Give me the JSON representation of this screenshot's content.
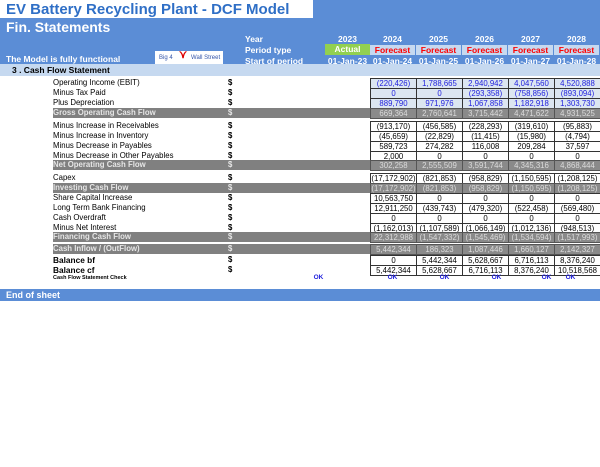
{
  "title": "EV Battery Recycling Plant - DCF Model",
  "subtitle": "Fin. Statements",
  "functional_note": "The Model is fully functional",
  "logo_text": [
    "Big 4",
    "Wall Street"
  ],
  "header": {
    "year_label": "Year",
    "period_label": "Period type",
    "start_label": "Start of period",
    "years": [
      "2023",
      "2024",
      "2025",
      "2026",
      "2027",
      "2028"
    ],
    "period_types": [
      "Actual",
      "Forecast",
      "Forecast",
      "Forecast",
      "Forecast",
      "Forecast"
    ],
    "starts": [
      "01-Jan-23",
      "01-Jan-24",
      "01-Jan-25",
      "01-Jan-26",
      "01-Jan-27",
      "01-Jan-28"
    ],
    "actual_color": "#92d050",
    "forecast_color": "#ff0000"
  },
  "section": "3 .  Cash Flow Statement",
  "currency": "$",
  "rows": [
    {
      "label": "Operating Income (EBIT)",
      "style": "blue",
      "values": [
        "(220,426)",
        "1,788,665",
        "2,940,942",
        "4,047,560",
        "4,520,888"
      ]
    },
    {
      "label": "Minus Tax Paid",
      "style": "blue",
      "values": [
        "0",
        "0",
        "(293,358)",
        "(758,856)",
        "(893,094)"
      ]
    },
    {
      "label": "Plus Depreciation",
      "style": "blue",
      "values": [
        "889,790",
        "971,976",
        "1,067,858",
        "1,182,918",
        "1,303,730"
      ]
    },
    {
      "label": "Gross Operating Cash Flow",
      "style": "total",
      "values": [
        "669,364",
        "2,760,641",
        "3,715,442",
        "4,471,622",
        "4,931,525"
      ]
    },
    {
      "label": "Minus Increase in Receivables",
      "style": "plain",
      "values": [
        "(913,170)",
        "(456,585)",
        "(228,293)",
        "(319,610)",
        "(95,883)"
      ]
    },
    {
      "label": "Minus Increase in Inventory",
      "style": "plain",
      "values": [
        "(45,659)",
        "(22,829)",
        "(11,415)",
        "(15,980)",
        "(4,794)"
      ]
    },
    {
      "label": "Minus Decrease in Payables",
      "style": "plain",
      "values": [
        "589,723",
        "274,282",
        "116,008",
        "209,284",
        "37,597"
      ]
    },
    {
      "label": "Minus Decrease in Other Payables",
      "style": "plain",
      "values": [
        "2,000",
        "0",
        "0",
        "0",
        "0"
      ]
    },
    {
      "label": "Net Operating Cash Flow",
      "style": "total",
      "values": [
        "302,258",
        "2,555,509",
        "3,591,744",
        "4,345,316",
        "4,868,444"
      ]
    },
    {
      "label": "Capex",
      "style": "plain",
      "values": [
        "(17,172,902)",
        "(821,853)",
        "(958,829)",
        "(1,150,595)",
        "(1,208,125)"
      ]
    },
    {
      "label": "Investing Cash Flow",
      "style": "total",
      "values": [
        "(17,172,902)",
        "(821,853)",
        "(958,829)",
        "(1,150,595)",
        "(1,208,125)"
      ]
    },
    {
      "label": "Share Capital Increase",
      "style": "plain",
      "values": [
        "10,563,750",
        "0",
        "0",
        "0",
        "0"
      ]
    },
    {
      "label": "Long Term Bank Financing",
      "style": "plain",
      "values": [
        "12,911,250",
        "(439,743)",
        "(479,320)",
        "(522,458)",
        "(569,480)"
      ]
    },
    {
      "label": "Cash Overdraft",
      "style": "plain",
      "values": [
        "0",
        "0",
        "0",
        "0",
        "0"
      ]
    },
    {
      "label": "Minus Net Interest",
      "style": "plain",
      "values": [
        "(1,162,013)",
        "(1,107,589)",
        "(1,066,149)",
        "(1,012,136)",
        "(948,513)"
      ]
    },
    {
      "label": "Financing Cash Flow",
      "style": "total",
      "values": [
        "22,312,988",
        "(1,547,332)",
        "(1,545,469)",
        "(1,534,594)",
        "(1,517,993)"
      ]
    },
    {
      "label": "Cash Inflow / (OutFlow)",
      "style": "total",
      "values": [
        "5,442,344",
        "186,323",
        "1,087,446",
        "1,660,127",
        "2,142,327"
      ]
    },
    {
      "label": "Balance bf",
      "style": "bold",
      "values": [
        "0",
        "5,442,344",
        "5,628,667",
        "6,716,113",
        "8,376,240"
      ]
    },
    {
      "label": "Balance cf",
      "style": "bold",
      "values": [
        "5,442,344",
        "5,628,667",
        "6,716,113",
        "8,376,240",
        "10,518,568"
      ]
    }
  ],
  "check": {
    "label": "Cash Flow Statement Check",
    "values": [
      "OK",
      "OK",
      "OK",
      "OK",
      "OK",
      "OK"
    ]
  },
  "end_label": "End of sheet"
}
